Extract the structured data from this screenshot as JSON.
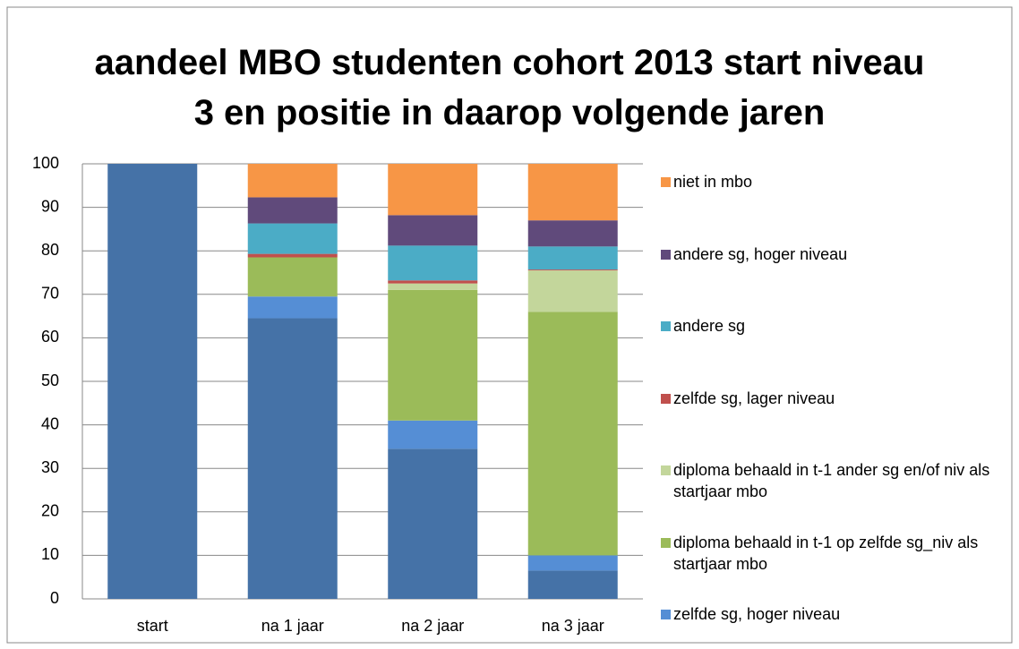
{
  "chart_data": {
    "type": "stacked_bar",
    "title": "aandeel MBO studenten cohort 2013 start niveau 3 en positie in daarop volgende jaren",
    "categories": [
      "start",
      "na 1 jaar",
      "na 2 jaar",
      "na 3 jaar"
    ],
    "series": [
      {
        "color": "#4572A7",
        "values": [
          100,
          64.5,
          34.5,
          6.5
        ]
      },
      {
        "name": "zelfde sg, hoger niveau",
        "color": "#558ED5",
        "values": [
          0,
          5,
          6.5,
          3.5
        ]
      },
      {
        "name": "diploma behaald in t-1 op zelfde sg_niv als startjaar mbo",
        "color": "#9BBB59",
        "values": [
          0,
          9,
          30,
          56
        ]
      },
      {
        "name": "diploma behaald in t-1 ander sg en/of niv als startjaar mbo",
        "color": "#C3D69B",
        "values": [
          0,
          0,
          1.5,
          9.5
        ]
      },
      {
        "name": "zelfde sg, lager niveau",
        "color": "#C0504D",
        "values": [
          0,
          0.8,
          0.7,
          0.2
        ]
      },
      {
        "name": "andere sg",
        "color": "#4BACC6",
        "values": [
          0,
          7,
          8,
          5.3
        ]
      },
      {
        "name": "andere sg, hoger niveau",
        "color": "#604A7B",
        "values": [
          0,
          6,
          7,
          6
        ]
      },
      {
        "name": "niet in mbo",
        "color": "#F79646",
        "values": [
          0,
          7.7,
          11.8,
          13
        ]
      }
    ],
    "ylim": [
      0,
      100
    ],
    "yticks": [
      0,
      10,
      20,
      30,
      40,
      50,
      60,
      70,
      80,
      90,
      100
    ],
    "grid": true,
    "legend": "right"
  }
}
